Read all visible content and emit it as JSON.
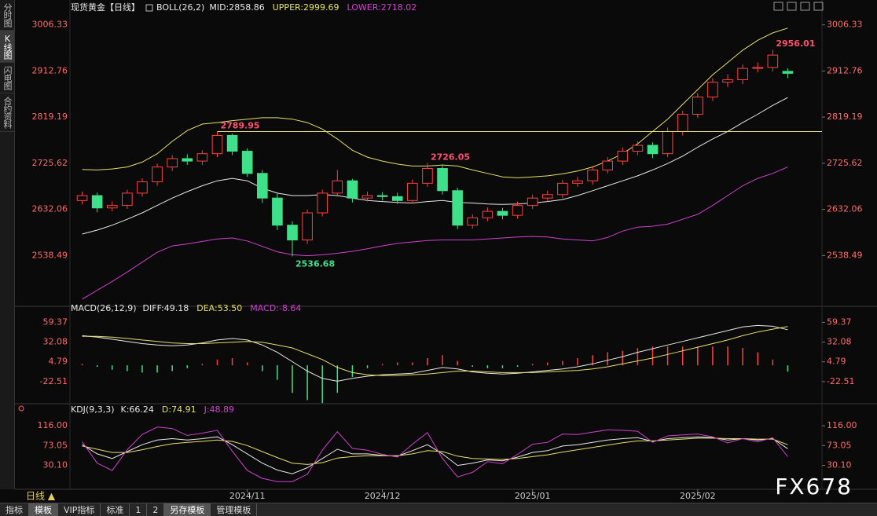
{
  "ui": {
    "tabs": [
      "分时图",
      "K线图",
      "闪电图",
      "合约资料"
    ],
    "period": "日线 ▲",
    "toolbar": [
      "指标",
      "模板",
      "VIP指标",
      "标准",
      "1",
      "2",
      "另存模板",
      "管理模板"
    ],
    "watermark": "FX678"
  },
  "chart_data": [
    {
      "type": "candlestick",
      "title": "现货黄金【日线】",
      "indicator": "BOLL(26,2)",
      "legend": [
        {
          "text": "MID:2858.86",
          "color": "#e8e8e8"
        },
        {
          "text": "UPPER:2999.69",
          "color": "#e6e066"
        },
        {
          "text": "LOWER:2718.02",
          "color": "#d040d0"
        }
      ],
      "categories": [
        null,
        null,
        null,
        null,
        null,
        null,
        null,
        null,
        null,
        null,
        null,
        "2024/11",
        null,
        null,
        null,
        null,
        null,
        null,
        null,
        null,
        "2024/12",
        null,
        null,
        null,
        null,
        null,
        null,
        null,
        null,
        null,
        "2025/01",
        null,
        null,
        null,
        null,
        null,
        null,
        null,
        null,
        null,
        null,
        "2025/02",
        null,
        null,
        null,
        null,
        null,
        null
      ],
      "open": [
        2650,
        2660,
        2635,
        2640,
        2665,
        2688,
        2718,
        2735,
        2730,
        2745,
        2782,
        2750,
        2705,
        2655,
        2600,
        2570,
        2625,
        2665,
        2690,
        2655,
        2660,
        2658,
        2650,
        2685,
        2715,
        2670,
        2600,
        2615,
        2628,
        2620,
        2640,
        2655,
        2662,
        2685,
        2690,
        2712,
        2730,
        2750,
        2762,
        2745,
        2790,
        2825,
        2860,
        2890,
        2895,
        2918,
        2920,
        2912
      ],
      "high": [
        2668,
        2666,
        2648,
        2672,
        2695,
        2725,
        2742,
        2744,
        2752,
        2789.95,
        2786,
        2756,
        2712,
        2664,
        2608,
        2632,
        2672,
        2712,
        2694,
        2668,
        2667,
        2666,
        2693,
        2726.05,
        2720,
        2676,
        2622,
        2636,
        2635,
        2648,
        2662,
        2670,
        2692,
        2698,
        2720,
        2738,
        2758,
        2770,
        2768,
        2798,
        2832,
        2868,
        2898,
        2906,
        2926,
        2930,
        2956.01,
        2918
      ],
      "low": [
        2642,
        2626,
        2628,
        2633,
        2658,
        2680,
        2710,
        2722,
        2722,
        2738,
        2742,
        2698,
        2645,
        2590,
        2536.68,
        2562,
        2618,
        2658,
        2646,
        2648,
        2650,
        2643,
        2644,
        2678,
        2662,
        2592,
        2593,
        2608,
        2612,
        2613,
        2633,
        2648,
        2655,
        2678,
        2682,
        2705,
        2722,
        2742,
        2736,
        2738,
        2782,
        2818,
        2852,
        2880,
        2886,
        2910,
        2912,
        2898
      ],
      "close": [
        2660,
        2635,
        2640,
        2665,
        2688,
        2718,
        2735,
        2730,
        2745,
        2782,
        2750,
        2705,
        2655,
        2600,
        2570,
        2625,
        2665,
        2690,
        2655,
        2660,
        2658,
        2650,
        2685,
        2715,
        2670,
        2600,
        2615,
        2628,
        2620,
        2640,
        2655,
        2662,
        2685,
        2690,
        2712,
        2730,
        2750,
        2762,
        2745,
        2790,
        2825,
        2860,
        2890,
        2895,
        2918,
        2920,
        2945,
        2908
      ],
      "up_color": "#ff4040",
      "down_color": "#3fe08a",
      "series": [
        {
          "color": "#e8e8e8",
          "values": [
            2582,
            2590,
            2600,
            2612,
            2625,
            2640,
            2655,
            2668,
            2680,
            2690,
            2695,
            2690,
            2675,
            2665,
            2660,
            2660,
            2662,
            2660,
            2655,
            2650,
            2648,
            2646,
            2645,
            2648,
            2650,
            2646,
            2645,
            2643,
            2642,
            2643,
            2645,
            2648,
            2652,
            2660,
            2670,
            2680,
            2690,
            2700,
            2712,
            2725,
            2740,
            2758,
            2775,
            2790,
            2808,
            2825,
            2843,
            2858.86
          ]
        },
        {
          "color": "#e6e066",
          "values": [
            2713,
            2712,
            2714,
            2718,
            2728,
            2745,
            2770,
            2792,
            2805,
            2808,
            2812,
            2815,
            2818,
            2818,
            2815,
            2808,
            2795,
            2775,
            2752,
            2738,
            2730,
            2724,
            2720,
            2720,
            2722,
            2720,
            2712,
            2705,
            2698,
            2696,
            2698,
            2700,
            2704,
            2710,
            2718,
            2730,
            2745,
            2765,
            2790,
            2815,
            2845,
            2875,
            2905,
            2930,
            2955,
            2975,
            2990,
            2999.69
          ]
        },
        {
          "color": "#d040d0",
          "values": [
            2450,
            2468,
            2486,
            2505,
            2525,
            2545,
            2558,
            2562,
            2567,
            2572,
            2574,
            2568,
            2557,
            2546,
            2540,
            2538,
            2540,
            2543,
            2547,
            2552,
            2558,
            2563,
            2566,
            2569,
            2570,
            2570,
            2570,
            2572,
            2574,
            2576,
            2577,
            2576,
            2572,
            2570,
            2568,
            2575,
            2588,
            2596,
            2598,
            2602,
            2612,
            2622,
            2640,
            2660,
            2680,
            2695,
            2705,
            2718.02
          ]
        }
      ],
      "annotations": [
        {
          "x": 9,
          "y": 2789.95,
          "color": "#ff5070",
          "line": "#e6e066"
        },
        {
          "x": 23,
          "y": 2726.05,
          "color": "#ff5070"
        },
        {
          "x": 14,
          "y": 2536.68,
          "color": "#3fe08a"
        },
        {
          "x": 46,
          "y": 2956.01,
          "color": "#ff5070"
        }
      ],
      "ylim": [
        2443.4,
        3021.7
      ],
      "yticks": [
        3006.33,
        2912.76,
        2819.19,
        2725.62,
        2632.06,
        2538.49
      ]
    },
    {
      "type": "macd",
      "title": "MACD(26,12,9)",
      "legend": [
        {
          "text": "DIFF:49.18",
          "color": "#e8e8e8"
        },
        {
          "text": "DEA:53.50",
          "color": "#e6e066"
        },
        {
          "text": "MACD:-8.64",
          "color": "#d040d0"
        }
      ],
      "series": [
        {
          "color": "#e8e8e8",
          "values": [
            41,
            39,
            36,
            33,
            30,
            28,
            27,
            28,
            31,
            35,
            37,
            35,
            28,
            18,
            5,
            -8,
            -18,
            -22,
            -18,
            -15,
            -13,
            -12,
            -11,
            -7,
            -3,
            -5,
            -9,
            -11,
            -12,
            -11,
            -9,
            -7,
            -5,
            -2,
            2,
            7,
            12,
            18,
            23,
            28,
            33,
            38,
            43,
            48,
            53,
            55,
            54,
            49.18
          ]
        },
        {
          "color": "#e6e066",
          "values": [
            40,
            40,
            39,
            37,
            35,
            33,
            31,
            30,
            30,
            31,
            32,
            33,
            32,
            28,
            24,
            16,
            8,
            -3,
            -10,
            -13,
            -14,
            -14,
            -13,
            -12,
            -10,
            -8,
            -8,
            -9,
            -10,
            -10,
            -10,
            -9,
            -8,
            -7,
            -5,
            -2,
            2,
            6,
            10,
            15,
            20,
            25,
            30,
            35,
            41,
            46,
            50,
            53.5
          ]
        },
        {
          "type": "bar",
          "up_color": "#ff4040",
          "down_color": "#3fe08a",
          "values": [
            2,
            -2,
            -6,
            -8,
            -10,
            -10,
            -8,
            -4,
            2,
            8,
            10,
            4,
            -8,
            -20,
            -38,
            -48,
            -52,
            -38,
            -16,
            -4,
            2,
            4,
            4,
            10,
            14,
            6,
            -2,
            -4,
            -4,
            -2,
            2,
            4,
            6,
            10,
            14,
            18,
            20,
            24,
            26,
            26,
            26,
            26,
            26,
            26,
            24,
            18,
            8,
            -8.64
          ]
        }
      ],
      "ylim": [
        -50.8,
        68.5
      ],
      "yticks": [
        59.37,
        32.08,
        4.79,
        -22.51
      ]
    },
    {
      "type": "line",
      "title": "KDJ(9,3,3)",
      "legend": [
        {
          "text": "K:66.24",
          "color": "#e8e8e8"
        },
        {
          "text": "D:74.91",
          "color": "#e6e066"
        },
        {
          "text": "J:48.89",
          "color": "#d040d0"
        }
      ],
      "series": [
        {
          "color": "#e8e8e8",
          "values": [
            75,
            55,
            45,
            60,
            75,
            85,
            88,
            85,
            88,
            92,
            75,
            55,
            35,
            20,
            12,
            25,
            45,
            65,
            55,
            55,
            52,
            50,
            62,
            75,
            55,
            30,
            35,
            42,
            40,
            48,
            58,
            62,
            72,
            75,
            80,
            85,
            88,
            90,
            82,
            88,
            90,
            92,
            90,
            85,
            88,
            85,
            88,
            66.24
          ]
        },
        {
          "color": "#e6e066",
          "values": [
            72,
            65,
            58,
            58,
            64,
            71,
            77,
            80,
            82,
            85,
            82,
            73,
            60,
            47,
            35,
            32,
            36,
            46,
            49,
            51,
            51,
            51,
            55,
            62,
            60,
            50,
            45,
            44,
            43,
            45,
            49,
            53,
            59,
            64,
            69,
            74,
            79,
            83,
            83,
            85,
            87,
            89,
            89,
            88,
            88,
            87,
            87,
            74.91
          ]
        },
        {
          "color": "#d040d0",
          "values": [
            81,
            35,
            19,
            64,
            97,
            113,
            110,
            95,
            100,
            106,
            61,
            19,
            2,
            -5,
            -5,
            11,
            63,
            103,
            67,
            63,
            54,
            48,
            76,
            101,
            45,
            5,
            15,
            38,
            34,
            54,
            76,
            80,
            98,
            97,
            102,
            107,
            106,
            104,
            80,
            94,
            96,
            98,
            92,
            79,
            88,
            81,
            90,
            48.89
          ]
        }
      ],
      "ylim": [
        -16.6,
        141.6
      ],
      "yticks": [
        {
          "value": 116,
          "label": "116.00"
        },
        73.05,
        {
          "value": 30.1,
          "label": "30.10"
        }
      ]
    }
  ]
}
